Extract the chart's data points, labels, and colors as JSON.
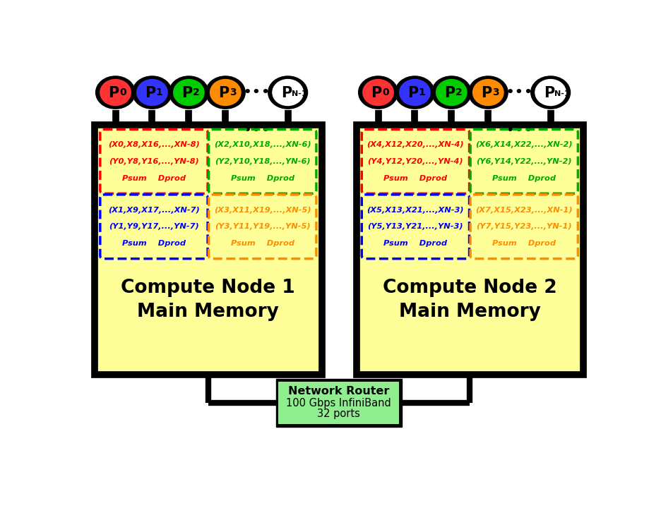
{
  "node_bg": "#ffff99",
  "router_bg": "#90EE90",
  "proc_colors": [
    "#ff3333",
    "#3333ff",
    "#00cc00",
    "#ff8c00",
    "#ffffff"
  ],
  "proc_subs": [
    "0",
    "1",
    "2",
    "3",
    "N-1"
  ],
  "node1_boxes": [
    {
      "color": "#ff0000",
      "x_line": "(X0,X8,X16,...,XN-8)",
      "y_line": "(Y0,Y8,Y16,...,YN-8)"
    },
    {
      "color": "#00aa00",
      "x_line": "(X2,X10,X18,...,XN-6)",
      "y_line": "(Y2,Y10,Y18,...,YN-6)"
    },
    {
      "color": "#0000ff",
      "x_line": "(X1,X9,X17,...,XN-7)",
      "y_line": "(Y1,Y9,Y17,...,YN-7)"
    },
    {
      "color": "#ff8c00",
      "x_line": "(X3,X11,X19,...,XN-5)",
      "y_line": "(Y3,Y11,Y19,...,YN-5)"
    }
  ],
  "node2_boxes": [
    {
      "color": "#ff0000",
      "x_line": "(X4,X12,X20,...,XN-4)",
      "y_line": "(Y4,Y12,Y20,...,YN-4)"
    },
    {
      "color": "#00aa00",
      "x_line": "(X6,X14,X22,...,XN-2)",
      "y_line": "(Y6,Y14,Y22,...,YN-2)"
    },
    {
      "color": "#0000ff",
      "x_line": "(X5,X13,X21,...,XN-3)",
      "y_line": "(Y5,Y13,Y21,...,YN-3)"
    },
    {
      "color": "#ff8c00",
      "x_line": "(X7,X15,X23,...,XN-1)",
      "y_line": "(Y7,Y15,Y23,...,YN-1)"
    }
  ],
  "node1_label": "Compute Node 1\nMain Memory",
  "node2_label": "Compute Node 2\nMain Memory",
  "router_line1": "Network Router",
  "router_line2": "100 Gbps InfiniBand",
  "router_line3": "32 ports",
  "figw": 9.36,
  "figh": 7.2,
  "dpi": 100
}
